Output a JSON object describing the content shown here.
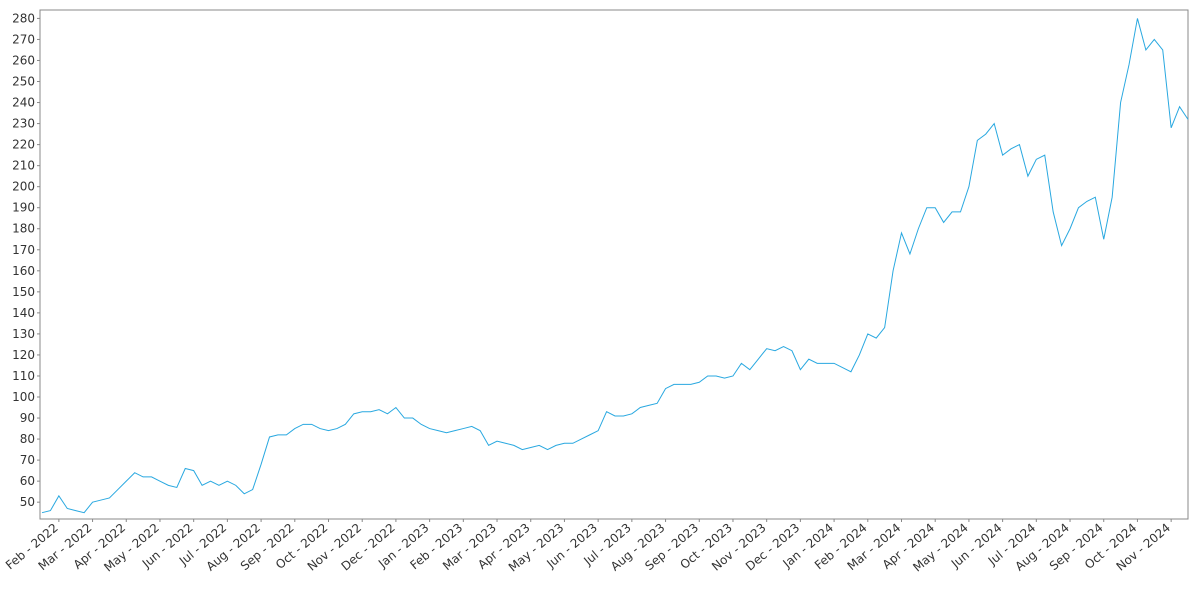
{
  "chart_data": {
    "type": "line",
    "color": "#29a8e0",
    "categories": [
      null,
      null,
      "Feb - 2022",
      null,
      null,
      null,
      "Mar - 2022",
      null,
      null,
      null,
      "Apr - 2022",
      null,
      null,
      null,
      "May - 2022",
      null,
      null,
      null,
      "Jun - 2022",
      null,
      null,
      null,
      "Jul - 2022",
      null,
      null,
      null,
      "Aug - 2022",
      null,
      null,
      null,
      "Sep - 2022",
      null,
      null,
      null,
      "Oct - 2022",
      null,
      null,
      null,
      "Nov - 2022",
      null,
      null,
      null,
      "Dec - 2022",
      null,
      null,
      null,
      "Jan - 2023",
      null,
      null,
      null,
      "Feb - 2023",
      null,
      null,
      null,
      "Mar - 2023",
      null,
      null,
      null,
      "Apr - 2023",
      null,
      null,
      null,
      "May - 2023",
      null,
      null,
      null,
      "Jun - 2023",
      null,
      null,
      null,
      "Jul - 2023",
      null,
      null,
      null,
      "Aug - 2023",
      null,
      null,
      null,
      "Sep - 2023",
      null,
      null,
      null,
      "Oct - 2023",
      null,
      null,
      null,
      "Nov - 2023",
      null,
      null,
      null,
      "Dec - 2023",
      null,
      null,
      null,
      "Jan - 2024",
      null,
      null,
      null,
      "Feb - 2024",
      null,
      null,
      null,
      "Mar - 2024",
      null,
      null,
      null,
      "Apr - 2024",
      null,
      null,
      null,
      "May - 2024",
      null,
      null,
      null,
      "Jun - 2024",
      null,
      null,
      null,
      "Jul - 2024",
      null,
      null,
      null,
      "Aug - 2024",
      null,
      null,
      null,
      "Sep - 2024",
      null,
      null,
      null,
      "Oct - 2024",
      null,
      null,
      null,
      "Nov - 2024",
      null,
      null
    ],
    "values": [
      45,
      46,
      53,
      47,
      46,
      45,
      50,
      51,
      52,
      56,
      60,
      64,
      62,
      62,
      60,
      58,
      57,
      66,
      65,
      58,
      60,
      58,
      60,
      58,
      54,
      56,
      68,
      81,
      82,
      82,
      85,
      87,
      87,
      85,
      84,
      85,
      87,
      92,
      93,
      93,
      94,
      92,
      95,
      90,
      90,
      87,
      85,
      84,
      83,
      84,
      85,
      86,
      84,
      77,
      79,
      78,
      77,
      75,
      76,
      77,
      75,
      77,
      78,
      78,
      80,
      82,
      84,
      93,
      91,
      91,
      92,
      95,
      96,
      97,
      104,
      106,
      106,
      106,
      107,
      110,
      110,
      109,
      110,
      116,
      113,
      118,
      123,
      122,
      124,
      122,
      113,
      118,
      116,
      116,
      116,
      114,
      112,
      120,
      130,
      128,
      133,
      160,
      178,
      168,
      180,
      190,
      190,
      183,
      188,
      188,
      200,
      222,
      225,
      230,
      215,
      218,
      220,
      205,
      213,
      215,
      188,
      172,
      180,
      190,
      193,
      195,
      175,
      195,
      240,
      258,
      280,
      265,
      270,
      265,
      228,
      238,
      232
    ],
    "ylim": [
      42,
      284
    ],
    "yticks": [
      50,
      60,
      70,
      80,
      90,
      100,
      110,
      120,
      130,
      140,
      150,
      160,
      170,
      180,
      190,
      200,
      210,
      220,
      230,
      240,
      250,
      260,
      270,
      280
    ]
  }
}
